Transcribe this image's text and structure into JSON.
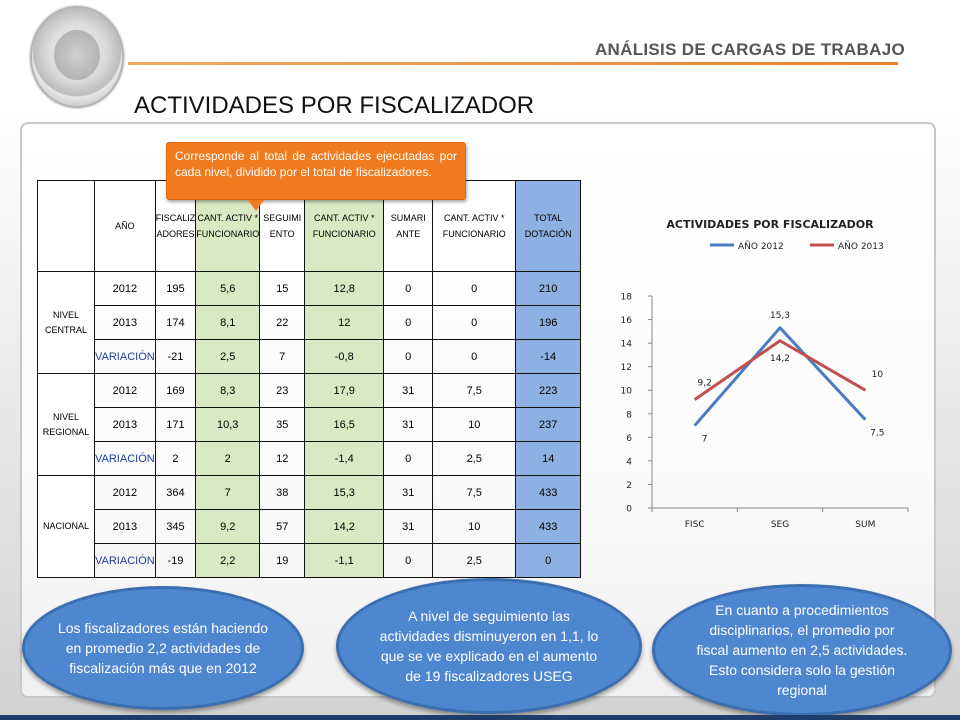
{
  "header": {
    "section_title": "ANÁLISIS DE CARGAS DE TRABAJO",
    "page_title": "ACTIVIDADES POR FISCALIZADOR"
  },
  "callout": {
    "text": "Corresponde al total de actividades ejecutadas por cada nivel, dividido por el total de fiscalizadores."
  },
  "table": {
    "headers": [
      "AÑO",
      "FISCALIZ ADORES",
      "CANT. ACTIV * FUNCIONARIO",
      "SEGUIMI ENTO",
      "CANT. ACTIV * FUNCIONARIO",
      "SUMARI ANTE",
      "CANT. ACTIV * FUNCIONARIO",
      "TOTAL DOTACIÓN"
    ],
    "groups": [
      {
        "label": "NIVEL CENTRAL",
        "rows": [
          [
            "2012",
            "195",
            "5,6",
            "15",
            "12,8",
            "0",
            "0",
            "210"
          ],
          [
            "2013",
            "174",
            "8,1",
            "22",
            "12",
            "0",
            "0",
            "196"
          ],
          [
            "VARIACIÓN",
            "-21",
            "2,5",
            "7",
            "-0,8",
            "0",
            "0",
            "-14"
          ]
        ]
      },
      {
        "label": "NIVEL REGIONAL",
        "rows": [
          [
            "2012",
            "169",
            "8,3",
            "23",
            "17,9",
            "31",
            "7,5",
            "223"
          ],
          [
            "2013",
            "171",
            "10,3",
            "35",
            "16,5",
            "31",
            "10",
            "237"
          ],
          [
            "VARIACIÓN",
            "2",
            "2",
            "12",
            "-1,4",
            "0",
            "2,5",
            "14"
          ]
        ]
      },
      {
        "label": "NACIONAL",
        "rows": [
          [
            "2012",
            "364",
            "7",
            "38",
            "15,3",
            "31",
            "7,5",
            "433"
          ],
          [
            "2013",
            "345",
            "9,2",
            "57",
            "14,2",
            "31",
            "10",
            "433"
          ],
          [
            "VARIACIÓN",
            "-19",
            "2,2",
            "19",
            "-1,1",
            "0",
            "2,5",
            "0"
          ]
        ]
      }
    ]
  },
  "chart_data": {
    "type": "line",
    "title": "ACTIVIDADES POR FISCALIZADOR",
    "categories": [
      "FISC",
      "SEG",
      "SUM"
    ],
    "series": [
      {
        "name": "AÑO 2012",
        "values": [
          7,
          15.3,
          7.5
        ],
        "labels": [
          "7",
          "15,3",
          "7,5"
        ],
        "color": "#4a7bc4"
      },
      {
        "name": "AÑO 2013",
        "values": [
          9.2,
          14.2,
          10
        ],
        "labels": [
          "9,2",
          "14,2",
          "10"
        ],
        "color": "#c0504d"
      }
    ],
    "ylim": [
      0,
      18
    ],
    "yticks": [
      "0",
      "2",
      "4",
      "6",
      "8",
      "10",
      "12",
      "14",
      "16",
      "18"
    ],
    "legend_position": "top",
    "grid": false
  },
  "bubbles": [
    {
      "text": "Los fiscalizadores están haciendo en promedio 2,2 actividades de fiscalización más que en 2012"
    },
    {
      "text": "A nivel de seguimiento las actividades disminuyeron en 1,1, lo que se ve explicado en el aumento de 19 fiscalizadores USEG"
    },
    {
      "text": "En cuanto a procedimientos disciplinarios, el promedio por fiscal aumento en 2,5 actividades. Esto considera solo la gestión regional"
    }
  ],
  "colors": {
    "accent_orange": "#f07a1d",
    "bubble_blue": "#4e86cf",
    "green_cell": "#d9e9c3",
    "blue_cell": "#8db1e2"
  }
}
